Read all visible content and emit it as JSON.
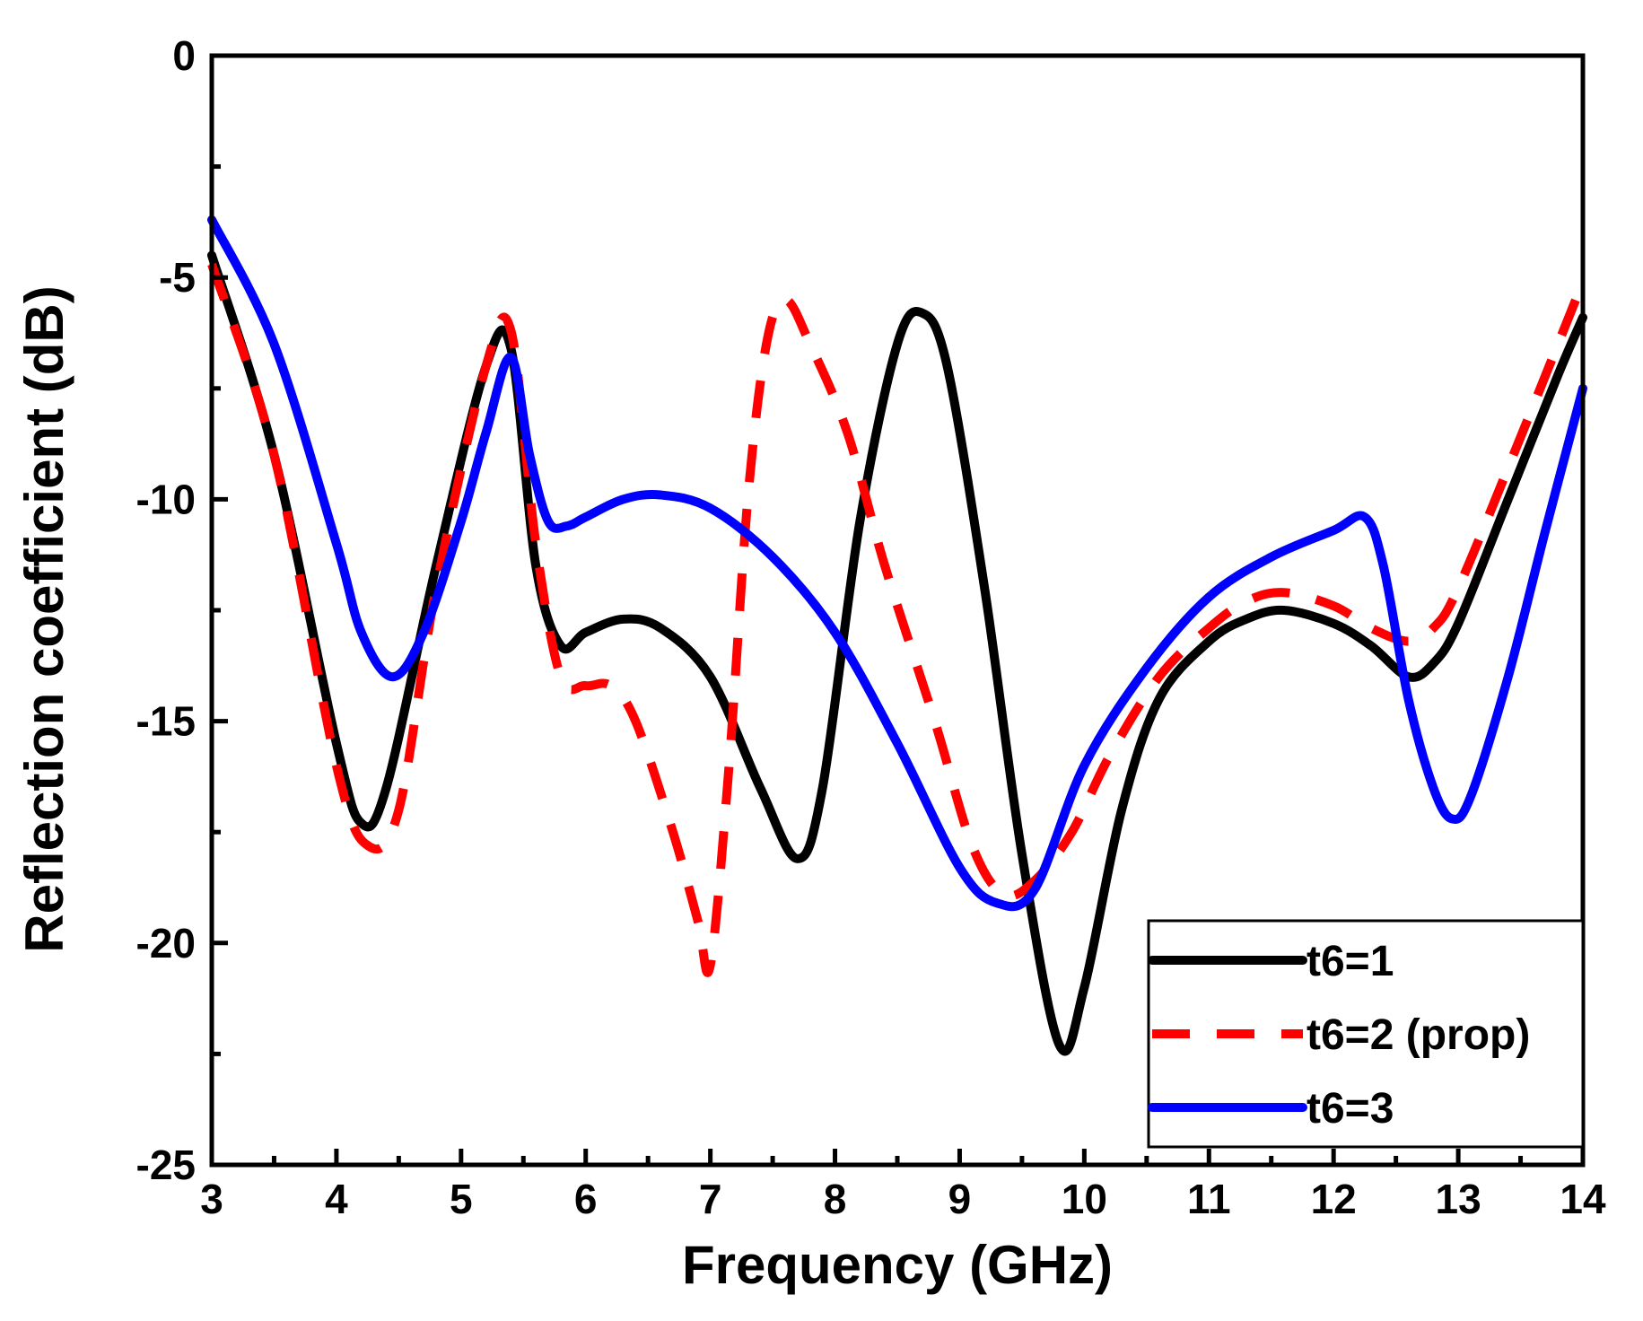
{
  "chart_data": {
    "type": "line",
    "title": "",
    "xlabel": "Frequency (GHz)",
    "ylabel": "Reflection coefficient (dB)",
    "xlim": [
      3,
      14
    ],
    "ylim": [
      -25,
      0
    ],
    "xticks": [
      "3",
      "4",
      "5",
      "6",
      "7",
      "8",
      "9",
      "10",
      "11",
      "12",
      "13",
      "14"
    ],
    "yticks": [
      "0",
      "-5",
      "-10",
      "-15",
      "-20",
      "-25"
    ],
    "grid": false,
    "legend_position": "bottom-right",
    "series": [
      {
        "name": "t6=1",
        "color": "#000000",
        "style": "solid",
        "x": [
          3.0,
          3.5,
          4.0,
          4.2,
          4.4,
          4.8,
          5.2,
          5.4,
          5.6,
          5.8,
          6.0,
          6.3,
          6.6,
          7.0,
          7.4,
          7.7,
          7.9,
          8.2,
          8.5,
          8.7,
          8.9,
          9.2,
          9.5,
          9.8,
          10.0,
          10.3,
          10.6,
          11.0,
          11.3,
          11.6,
          12.0,
          12.3,
          12.6,
          12.8,
          13.0,
          13.4,
          13.8,
          14.0
        ],
        "y": [
          -4.5,
          -9.0,
          -15.5,
          -17.3,
          -16.5,
          -11.5,
          -7.0,
          -6.6,
          -11.5,
          -13.3,
          -13.0,
          -12.7,
          -12.9,
          -14.0,
          -16.5,
          -18.1,
          -16.5,
          -10.5,
          -6.5,
          -5.8,
          -7.0,
          -12.0,
          -18.0,
          -22.3,
          -21.0,
          -17.0,
          -14.5,
          -13.2,
          -12.7,
          -12.5,
          -12.8,
          -13.3,
          -14.0,
          -13.7,
          -12.8,
          -10.0,
          -7.2,
          -5.9
        ]
      },
      {
        "name": "t6=2 (prop)",
        "color": "#ff0000",
        "style": "dashed",
        "x": [
          3.0,
          3.5,
          4.0,
          4.25,
          4.5,
          4.8,
          5.2,
          5.4,
          5.6,
          5.8,
          6.0,
          6.2,
          6.4,
          6.7,
          6.9,
          7.0,
          7.15,
          7.3,
          7.45,
          7.6,
          7.8,
          8.1,
          8.4,
          8.8,
          9.1,
          9.35,
          9.6,
          9.9,
          10.2,
          10.6,
          11.0,
          11.3,
          11.6,
          12.0,
          12.3,
          12.6,
          12.8,
          13.0,
          13.5,
          14.0
        ],
        "y": [
          -4.7,
          -9.0,
          -16.0,
          -17.8,
          -17.0,
          -12.0,
          -7.0,
          -6.2,
          -11.0,
          -14.0,
          -14.2,
          -14.2,
          -15.0,
          -17.5,
          -19.5,
          -20.5,
          -16.0,
          -10.0,
          -6.5,
          -5.5,
          -6.5,
          -8.5,
          -11.5,
          -15.0,
          -17.8,
          -18.9,
          -18.6,
          -17.5,
          -15.8,
          -14.0,
          -12.9,
          -12.3,
          -12.1,
          -12.4,
          -12.9,
          -13.2,
          -12.9,
          -12.0,
          -8.6,
          -5.1
        ]
      },
      {
        "name": "t6=3",
        "color": "#0000ff",
        "style": "solid",
        "x": [
          3.0,
          3.5,
          4.0,
          4.2,
          4.45,
          4.7,
          5.0,
          5.2,
          5.4,
          5.55,
          5.7,
          5.85,
          6.0,
          6.3,
          6.6,
          7.0,
          7.5,
          8.0,
          8.5,
          9.0,
          9.3,
          9.6,
          10.0,
          10.5,
          11.0,
          11.5,
          12.0,
          12.25,
          12.4,
          12.6,
          12.8,
          12.95,
          13.1,
          13.4,
          13.7,
          14.0
        ],
        "y": [
          -3.7,
          -6.5,
          -11.0,
          -13.0,
          -14.0,
          -13.0,
          -10.5,
          -8.5,
          -6.8,
          -9.0,
          -10.5,
          -10.6,
          -10.4,
          -10.0,
          -9.9,
          -10.2,
          -11.3,
          -13.0,
          -15.5,
          -18.3,
          -19.1,
          -18.8,
          -16.0,
          -13.8,
          -12.2,
          -11.3,
          -10.7,
          -10.4,
          -11.5,
          -14.5,
          -16.5,
          -17.2,
          -16.7,
          -14.0,
          -10.7,
          -7.5
        ]
      }
    ]
  }
}
